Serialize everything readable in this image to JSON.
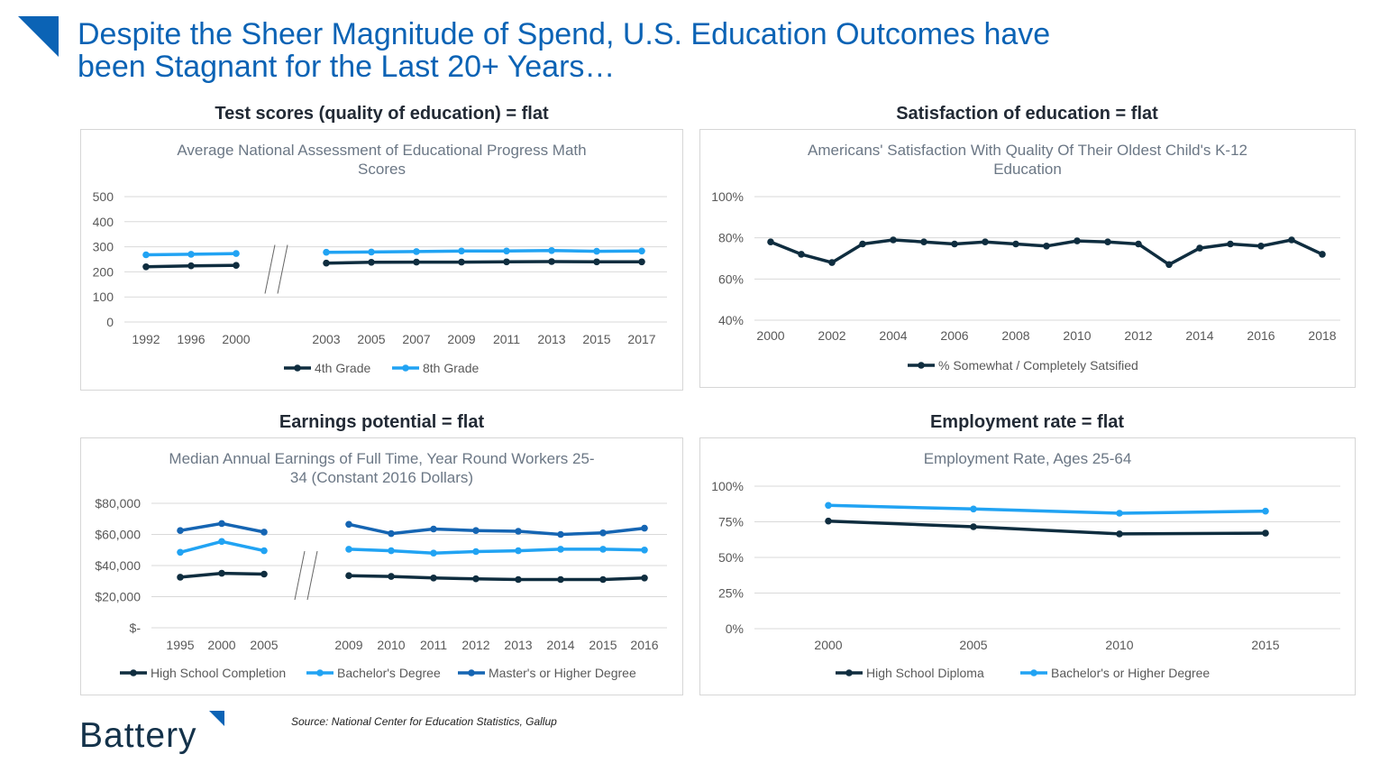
{
  "colors": {
    "brand_blue": "#0b63b5",
    "dark_navy": "#0f2d3f",
    "light_blue": "#21a3f3",
    "mid_blue": "#1565b3",
    "grid": "#d9d9d9",
    "axis_text": "#595959",
    "chart_title_text": "#6b7785"
  },
  "header": {
    "title_line1": "Despite the Sheer Magnitude of Spend, U.S. Education Outcomes have",
    "title_line2": "been Stagnant for the Last 20+ Years…"
  },
  "panels": {
    "test_scores": "Test scores (quality of education) = flat",
    "satisfaction": "Satisfaction of education = flat",
    "earnings": "Earnings potential = flat",
    "employment": "Employment rate = flat"
  },
  "footer": {
    "source": "Source: National Center for Education Statistics, Gallup",
    "logo_text": "Battery"
  },
  "chart_data": [
    {
      "type": "line",
      "title": "Average National Assessment of Educational Progress Math Scores",
      "categories": [
        "1992",
        "1996",
        "2000",
        "2003",
        "2005",
        "2007",
        "2009",
        "2011",
        "2013",
        "2015",
        "2017"
      ],
      "axis_break_after": "2000",
      "ylim": [
        0,
        500
      ],
      "yticks": [
        "0",
        "100",
        "200",
        "300",
        "400",
        "500"
      ],
      "grid": true,
      "legend": "bottom",
      "series": [
        {
          "name": "4th Grade",
          "color": "#0f2d3f",
          "values": [
            220,
            224,
            226,
            235,
            238,
            239,
            239,
            240,
            241,
            240,
            240
          ]
        },
        {
          "name": "8th Grade",
          "color": "#21a3f3",
          "values": [
            268,
            270,
            273,
            278,
            279,
            281,
            283,
            283,
            285,
            282,
            283
          ]
        }
      ]
    },
    {
      "type": "line",
      "title": "Americans' Satisfaction With Quality Of Their Oldest Child's K-12 Education",
      "x": [
        2000,
        2001,
        2002,
        2003,
        2004,
        2005,
        2006,
        2007,
        2008,
        2009,
        2010,
        2011,
        2012,
        2013,
        2014,
        2015,
        2016,
        2017,
        2018
      ],
      "xticks": [
        "2000",
        "2002",
        "2004",
        "2006",
        "2008",
        "2010",
        "2012",
        "2014",
        "2016",
        "2018"
      ],
      "ylim": [
        0.4,
        1.0
      ],
      "yticks": [
        "40%",
        "60%",
        "80%",
        "100%"
      ],
      "grid": true,
      "legend": "bottom",
      "series": [
        {
          "name": "% Somewhat / Completely Satsified",
          "color": "#0f2d3f",
          "values": [
            0.78,
            0.72,
            0.68,
            0.77,
            0.79,
            0.78,
            0.77,
            0.78,
            0.77,
            0.76,
            0.785,
            0.78,
            0.77,
            0.67,
            0.75,
            0.77,
            0.76,
            0.79,
            0.72
          ]
        }
      ]
    },
    {
      "type": "line",
      "title": "Median Annual Earnings of Full Time, Year Round Workers 25-34 (Constant 2016 Dollars)",
      "categories": [
        "1995",
        "2000",
        "2005",
        "2009",
        "2010",
        "2011",
        "2012",
        "2013",
        "2014",
        "2015",
        "2016"
      ],
      "axis_break_after": "2005",
      "ylim": [
        0,
        80000
      ],
      "yticks": [
        "$-",
        "$20,000",
        "$40,000",
        "$60,000",
        "$80,000"
      ],
      "grid": true,
      "legend": "bottom",
      "series": [
        {
          "name": "High School Completion",
          "color": "#0f2d3f",
          "values": [
            32500,
            35000,
            34500,
            33500,
            33000,
            32000,
            31500,
            31000,
            31000,
            31000,
            32000
          ]
        },
        {
          "name": "Bachelor's Degree",
          "color": "#21a3f3",
          "values": [
            48500,
            55500,
            49500,
            50500,
            49500,
            48000,
            49000,
            49500,
            50500,
            50500,
            50000
          ]
        },
        {
          "name": "Master's or Higher Degree",
          "color": "#1565b3",
          "values": [
            62500,
            67000,
            61500,
            66500,
            60500,
            63500,
            62500,
            62000,
            60000,
            61000,
            64000
          ]
        }
      ]
    },
    {
      "type": "line",
      "title": "Employment Rate, Ages 25-64",
      "categories": [
        "2000",
        "2005",
        "2010",
        "2015"
      ],
      "ylim": [
        0,
        1.0
      ],
      "yticks": [
        "0%",
        "25%",
        "50%",
        "75%",
        "100%"
      ],
      "grid": true,
      "legend": "bottom",
      "series": [
        {
          "name": "High School Diploma",
          "color": "#0f2d3f",
          "values": [
            0.755,
            0.715,
            0.665,
            0.67
          ]
        },
        {
          "name": "Bachelor's or Higher Degree",
          "color": "#21a3f3",
          "values": [
            0.865,
            0.84,
            0.81,
            0.825
          ]
        }
      ]
    }
  ]
}
